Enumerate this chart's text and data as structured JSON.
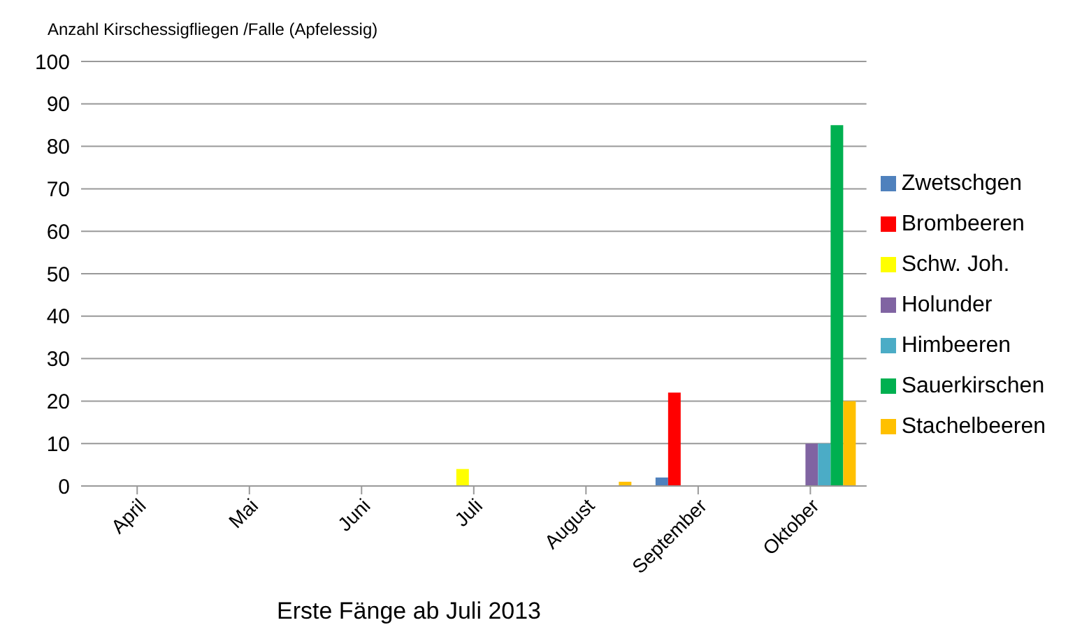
{
  "chart_data": {
    "type": "bar",
    "title": "Anzahl Kirschessigfliegen  /Falle (Apfelessig)",
    "xlabel": "Erste Fänge ab Juli 2013",
    "categories": [
      "April",
      "Mai",
      "Juni",
      "Juli",
      "August",
      "September",
      "Oktober"
    ],
    "series": [
      {
        "name": "Zwetschgen",
        "color": "#4f81bd",
        "values": [
          0,
          0,
          0,
          0,
          0,
          2,
          0
        ]
      },
      {
        "name": "Brombeeren",
        "color": "#ff0000",
        "values": [
          0,
          0,
          0,
          0,
          0,
          22,
          0
        ]
      },
      {
        "name": "Schw. Joh.",
        "color": "#ffff00",
        "values": [
          0,
          0,
          0,
          4,
          0,
          0,
          0
        ]
      },
      {
        "name": "Holunder",
        "color": "#8064a2",
        "values": [
          0,
          0,
          0,
          0,
          0,
          0,
          10
        ]
      },
      {
        "name": "Himbeeren",
        "color": "#4bacc6",
        "values": [
          0,
          0,
          0,
          0,
          0,
          0,
          10
        ]
      },
      {
        "name": "Sauerkirschen",
        "color": "#00b050",
        "values": [
          0,
          0,
          0,
          0,
          0,
          0,
          85
        ]
      },
      {
        "name": "Stachelbeeren",
        "color": "#ffc000",
        "values": [
          0,
          0,
          0,
          0,
          1,
          0,
          20
        ]
      }
    ],
    "ylim": [
      0,
      100
    ],
    "yticks": [
      0,
      10,
      20,
      30,
      40,
      50,
      60,
      70,
      80,
      90,
      100
    ],
    "grid": "y",
    "legend": "right"
  }
}
